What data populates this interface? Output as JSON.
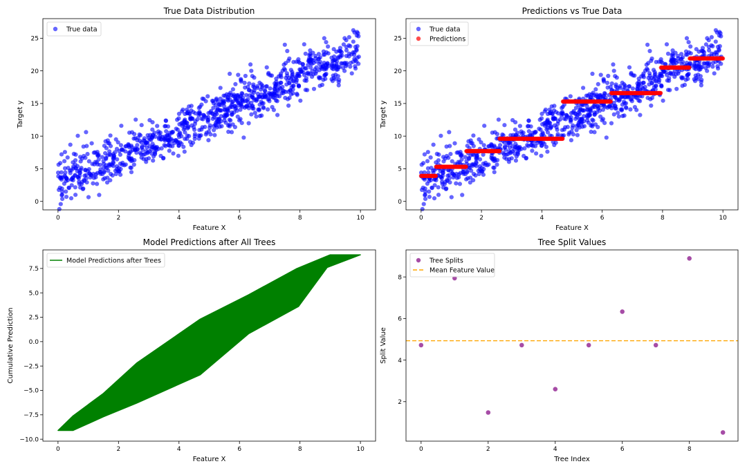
{
  "chart_data": [
    {
      "type": "scatter",
      "title": "True Data Distribution",
      "xlabel": "Feature X",
      "ylabel": "Target y",
      "xlim": [
        -0.5,
        10.5
      ],
      "ylim": [
        -1.3,
        28.0
      ],
      "xticks": [
        "0",
        "2",
        "4",
        "6",
        "8",
        "10"
      ],
      "yticks": [
        "0",
        "5",
        "10",
        "15",
        "20",
        "25"
      ],
      "legend_position": "top-left",
      "series": [
        {
          "name": "True data",
          "color": "#0000ff",
          "description": "about 1000 noisy points around y = 2x + 3 for x in [0, 10]",
          "trend": {
            "slope": 2,
            "intercept": 3,
            "noise_sd": 1.7,
            "n": 1000,
            "x_range": [
              0,
              10
            ]
          }
        }
      ]
    },
    {
      "type": "scatter",
      "title": "Predictions vs True Data",
      "xlabel": "Feature X",
      "ylabel": "Target y",
      "xlim": [
        -0.5,
        10.5
      ],
      "ylim": [
        -1.3,
        28.0
      ],
      "xticks": [
        "0",
        "2",
        "4",
        "6",
        "8",
        "10"
      ],
      "yticks": [
        "0",
        "5",
        "10",
        "15",
        "20",
        "25"
      ],
      "legend_position": "top-left",
      "series": [
        {
          "name": "True data",
          "color": "#0000ff"
        },
        {
          "name": "Predictions",
          "color": "#ff0000",
          "steps": [
            {
              "x": [
                0.0,
                0.5
              ],
              "y": 3.9
            },
            {
              "x": [
                0.5,
                1.5
              ],
              "y": 5.3
            },
            {
              "x": [
                1.5,
                2.6
              ],
              "y": 7.7
            },
            {
              "x": [
                2.6,
                4.7
              ],
              "y": 9.6
            },
            {
              "x": [
                4.7,
                6.3
              ],
              "y": 15.3
            },
            {
              "x": [
                6.3,
                7.95
              ],
              "y": 16.6
            },
            {
              "x": [
                7.95,
                8.9
              ],
              "y": 20.5
            },
            {
              "x": [
                8.9,
                10.0
              ],
              "y": 21.9
            }
          ]
        }
      ]
    },
    {
      "type": "line",
      "title": "Model Predictions after All Trees",
      "xlabel": "Feature X",
      "ylabel": "Cumulative Prediction",
      "xlim": [
        -0.5,
        10.5
      ],
      "ylim": [
        -10.2,
        9.4
      ],
      "xticks": [
        "0",
        "2",
        "4",
        "6",
        "8",
        "10"
      ],
      "yticks": [
        "−10.0",
        "−7.5",
        "−5.0",
        "−2.5",
        "0.0",
        "2.5",
        "5.0",
        "7.5"
      ],
      "legend_position": "top-left",
      "series": [
        {
          "name": "Model Predictions after Trees",
          "color": "#008000",
          "outline": [
            [
              0.0,
              -9.1
            ],
            [
              0.5,
              -9.1
            ],
            [
              1.5,
              -7.7
            ],
            [
              2.6,
              -6.3
            ],
            [
              4.7,
              -3.4
            ],
            [
              6.3,
              0.8
            ],
            [
              7.95,
              3.6
            ],
            [
              8.9,
              7.6
            ],
            [
              10.0,
              8.9
            ],
            [
              9.0,
              8.9
            ],
            [
              7.9,
              7.5
            ],
            [
              6.3,
              4.8
            ],
            [
              4.7,
              2.3
            ],
            [
              2.6,
              -2.2
            ],
            [
              1.5,
              -5.3
            ],
            [
              0.5,
              -7.6
            ],
            [
              0.0,
              -9.1
            ]
          ]
        }
      ]
    },
    {
      "type": "scatter",
      "title": "Tree Split Values",
      "xlabel": "Tree Index",
      "ylabel": "Split Value",
      "xlim": [
        -0.45,
        9.45
      ],
      "ylim": [
        0.1,
        9.3
      ],
      "xticks": [
        "0",
        "2",
        "4",
        "6",
        "8"
      ],
      "yticks": [
        "2",
        "4",
        "6",
        "8"
      ],
      "legend_position": "top-left",
      "series": [
        {
          "name": "Tree Splits",
          "color": "#800080",
          "x": [
            0,
            1,
            2,
            3,
            4,
            5,
            6,
            7,
            8,
            9
          ],
          "y": [
            4.72,
            7.94,
            1.48,
            4.72,
            2.6,
            4.72,
            6.33,
            4.72,
            8.89,
            0.52
          ]
        },
        {
          "name": "Mean Feature Value",
          "color": "#ffa500",
          "type": "hline",
          "y": 4.93
        }
      ]
    }
  ]
}
